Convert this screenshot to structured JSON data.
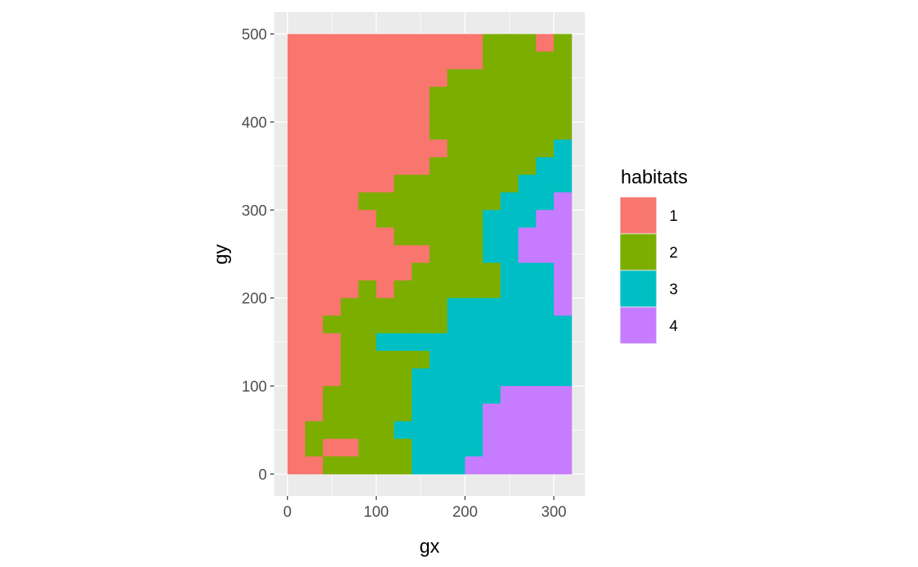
{
  "chart_data": {
    "type": "heatmap",
    "xlabel": "gx",
    "ylabel": "gy",
    "xlim": [
      -15,
      335
    ],
    "ylim": [
      -25,
      525
    ],
    "x_ticks": [
      0,
      100,
      200,
      300
    ],
    "y_ticks": [
      0,
      100,
      200,
      300,
      400,
      500
    ],
    "cell_size": 20,
    "grid": true,
    "legend": {
      "title": "habitats",
      "position": "right",
      "entries": [
        {
          "label": "1",
          "color": "#F8766D"
        },
        {
          "label": "2",
          "color": "#7CAE00"
        },
        {
          "label": "3",
          "color": "#00BFC4"
        },
        {
          "label": "4",
          "color": "#C77CFF"
        }
      ]
    },
    "x_centers": [
      10,
      30,
      50,
      70,
      90,
      110,
      130,
      150,
      170,
      190,
      210,
      230,
      250,
      270,
      290,
      310
    ],
    "y_centers_top_to_bottom": [
      490,
      470,
      450,
      430,
      410,
      390,
      370,
      350,
      330,
      310,
      290,
      270,
      250,
      230,
      210,
      190,
      170,
      150,
      130,
      110,
      90,
      70,
      50,
      30,
      10
    ],
    "habitat_grid": [
      "1111111111122212",
      "1111111111122222",
      "1111111112222222",
      "1111111122222222",
      "1111111122222222",
      "1111111122222222",
      "1111111112222223",
      "1111111122222233",
      "1111112222222333",
      "1111222222223334",
      "1111122222233344",
      "1111112222233444",
      "1111111122233444",
      "1111111222223334",
      "1111212222223334",
      "1112222223333334",
      "1122222223333333",
      "1112233333333333",
      "1112222233333333",
      "1112222333333333",
      "1122222333334444",
      "1122222333344444",
      "1222223333344444",
      "1211222333344444",
      "1122222333444444"
    ]
  }
}
